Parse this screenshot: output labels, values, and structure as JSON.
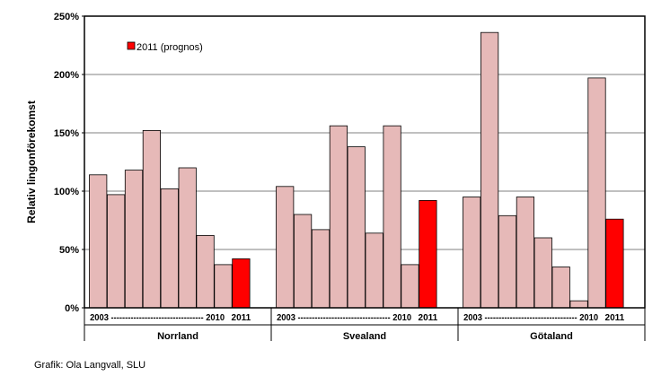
{
  "chart_data": {
    "type": "bar",
    "ylabel": "Relativ lingonförekomst",
    "ylim": [
      0,
      250
    ],
    "yticks": [
      0,
      50,
      100,
      150,
      200,
      250
    ],
    "ytick_labels": [
      "0%",
      "50%",
      "100%",
      "150%",
      "200%",
      "250%"
    ],
    "grid": true,
    "legend": {
      "position": "top-left",
      "label": "2011 (prognos)",
      "color": "#ff0000"
    },
    "colors": {
      "history": "#e6b9b8",
      "forecast": "#ff0000",
      "border": "#000000",
      "grid": "#808080"
    },
    "groups": [
      {
        "name": "Norrland",
        "year_range_text": "2003 --------------------------------- 2010",
        "forecast_label": "2011",
        "values": [
          114,
          97,
          118,
          152,
          102,
          120,
          62,
          37
        ],
        "forecast": 42
      },
      {
        "name": "Svealand",
        "year_range_text": "2003 --------------------------------- 2010",
        "forecast_label": "2011",
        "values": [
          104,
          80,
          67,
          156,
          138,
          64,
          156,
          37
        ],
        "forecast": 92
      },
      {
        "name": "Götaland",
        "year_range_text": "2003 --------------------------------- 2010",
        "forecast_label": "2011",
        "values": [
          95,
          236,
          79,
          95,
          60,
          35,
          6,
          197
        ],
        "forecast": 76
      }
    ]
  },
  "footer": {
    "credit": "Grafik: Ola Langvall, SLU"
  }
}
